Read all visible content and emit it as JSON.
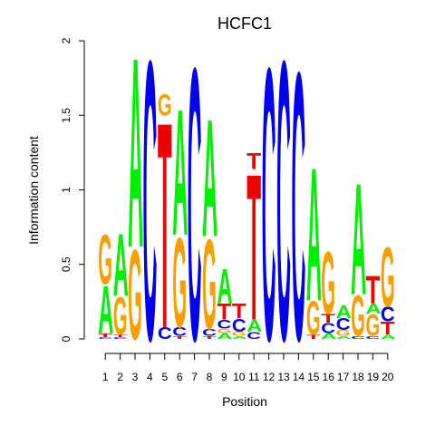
{
  "chart_data": {
    "type": "sequence-logo",
    "title": "HCFC1",
    "xlabel": "Position",
    "ylabel": "Information content",
    "ylim": [
      0,
      2
    ],
    "yticks": [
      "0",
      "0.5",
      "1",
      "1.5",
      "2"
    ],
    "positions": [
      "1",
      "2",
      "3",
      "4",
      "5",
      "6",
      "7",
      "8",
      "9",
      "10",
      "11",
      "12",
      "13",
      "14",
      "15",
      "16",
      "17",
      "18",
      "19",
      "20"
    ],
    "colors": {
      "A": "#00ee00",
      "C": "#0000ee",
      "G": "#f5a000",
      "T": "#ee0000"
    },
    "columns": [
      [
        {
          "base": "C",
          "h": 0.01
        },
        {
          "base": "T",
          "h": 0.03
        },
        {
          "base": "A",
          "h": 0.33
        },
        {
          "base": "G",
          "h": 0.34
        }
      ],
      [
        {
          "base": "C",
          "h": 0.01
        },
        {
          "base": "T",
          "h": 0.02
        },
        {
          "base": "G",
          "h": 0.26
        },
        {
          "base": "A",
          "h": 0.43
        }
      ],
      [
        {
          "base": "G",
          "h": 0.62
        },
        {
          "base": "A",
          "h": 1.31
        }
      ],
      [
        {
          "base": "C",
          "h": 1.93
        }
      ],
      [
        {
          "base": "C",
          "h": 0.08
        },
        {
          "base": "T",
          "h": 1.42
        },
        {
          "base": "G",
          "h": 0.15
        }
      ],
      [
        {
          "base": "T",
          "h": 0.02
        },
        {
          "base": "C",
          "h": 0.06
        },
        {
          "base": "G",
          "h": 0.62
        },
        {
          "base": "A",
          "h": 0.87
        }
      ],
      [
        {
          "base": "C",
          "h": 1.88
        }
      ],
      [
        {
          "base": "T",
          "h": 0.02
        },
        {
          "base": "C",
          "h": 0.05
        },
        {
          "base": "G",
          "h": 0.62
        },
        {
          "base": "A",
          "h": 0.81
        }
      ],
      [
        {
          "base": "A",
          "h": 0.04
        },
        {
          "base": "G",
          "h": 0.03
        },
        {
          "base": "C",
          "h": 0.06
        },
        {
          "base": "T",
          "h": 0.11
        },
        {
          "base": "A",
          "h": 0.24
        }
      ],
      [
        {
          "base": "A",
          "h": 0.02
        },
        {
          "base": "G",
          "h": 0.03
        },
        {
          "base": "C",
          "h": 0.09
        },
        {
          "base": "T",
          "h": 0.1
        }
      ],
      [
        {
          "base": "C",
          "h": 0.05
        },
        {
          "base": "A",
          "h": 0.08
        },
        {
          "base": "T",
          "h": 1.01
        },
        {
          "base": "T",
          "h": 0.11
        }
      ],
      [
        {
          "base": "C",
          "h": 1.88
        }
      ],
      [
        {
          "base": "C",
          "h": 1.93
        }
      ],
      [
        {
          "base": "C",
          "h": 1.85
        }
      ],
      [
        {
          "base": "T",
          "h": 0.03
        },
        {
          "base": "G",
          "h": 0.23
        },
        {
          "base": "A",
          "h": 0.92
        }
      ],
      [
        {
          "base": "A",
          "h": 0.04
        },
        {
          "base": "C",
          "h": 0.07
        },
        {
          "base": "T",
          "h": 0.06
        },
        {
          "base": "G",
          "h": 0.43
        }
      ],
      [
        {
          "base": "A",
          "h": 0.02
        },
        {
          "base": "G",
          "h": 0.04
        },
        {
          "base": "C",
          "h": 0.08
        },
        {
          "base": "A",
          "h": 0.09
        }
      ],
      [
        {
          "base": "C",
          "h": 0.02
        },
        {
          "base": "G",
          "h": 0.28
        },
        {
          "base": "A",
          "h": 0.77
        }
      ],
      [
        {
          "base": "C",
          "h": 0.02
        },
        {
          "base": "G",
          "h": 0.15
        },
        {
          "base": "A",
          "h": 0.07
        },
        {
          "base": "T",
          "h": 0.19
        }
      ],
      [
        {
          "base": "A",
          "h": 0.03
        },
        {
          "base": "T",
          "h": 0.09
        },
        {
          "base": "C",
          "h": 0.1
        },
        {
          "base": "G",
          "h": 0.41
        }
      ]
    ]
  }
}
